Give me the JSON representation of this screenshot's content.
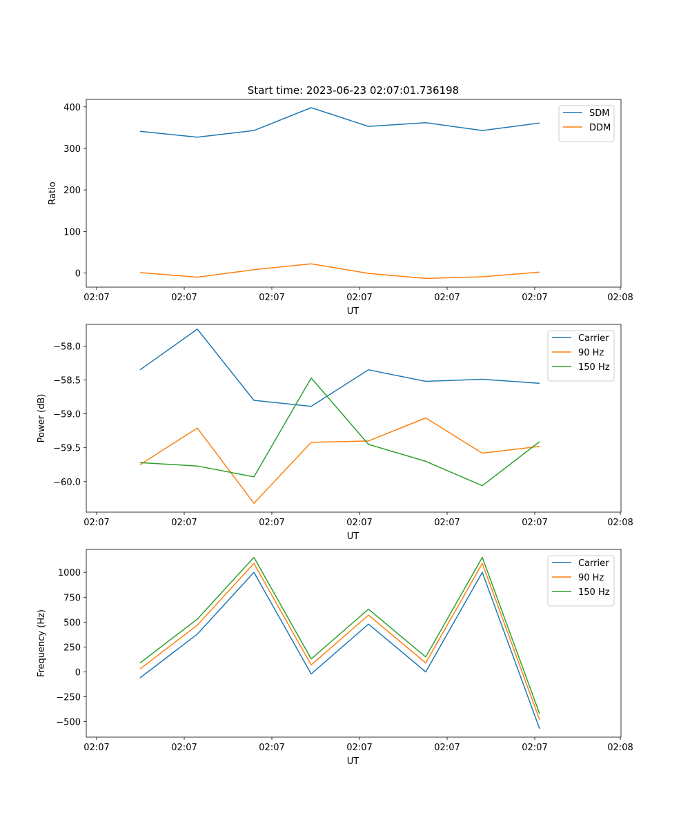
{
  "figure": {
    "title": "Start time: 2023-06-23 02:07:01.736198"
  },
  "chart_data": [
    {
      "type": "line",
      "title": "Start time: 2023-06-23 02:07:01.736198",
      "xlabel": "UT",
      "ylabel": "Ratio",
      "x_tick_labels": [
        "02:07",
        "02:07",
        "02:07",
        "02:07",
        "02:07",
        "02:07",
        "02:08"
      ],
      "y_ticks": [
        0,
        100,
        200,
        300,
        400
      ],
      "y_tick_labels": [
        "0",
        "100",
        "200",
        "300",
        "400"
      ],
      "ylim": [
        -34,
        418
      ],
      "legend_position": "top-right",
      "grid": false,
      "series": [
        {
          "name": "SDM",
          "color": "#1f77b4",
          "values": [
            341,
            327,
            343,
            398,
            353,
            362,
            343,
            361
          ]
        },
        {
          "name": "DDM",
          "color": "#ff7f0e",
          "values": [
            1,
            -10,
            8,
            22,
            -1,
            -13,
            -9,
            2
          ]
        }
      ]
    },
    {
      "type": "line",
      "xlabel": "UT",
      "ylabel": "Power (dB)",
      "x_tick_labels": [
        "02:07",
        "02:07",
        "02:07",
        "02:07",
        "02:07",
        "02:07",
        "02:08"
      ],
      "y_ticks": [
        -60.0,
        -59.5,
        -59.0,
        -58.5,
        -58.0
      ],
      "y_tick_labels": [
        "−60.0",
        "−59.5",
        "−59.0",
        "−58.5",
        "−58.0"
      ],
      "ylim": [
        -60.45,
        -57.68
      ],
      "legend_position": "top-right",
      "grid": false,
      "series": [
        {
          "name": "Carrier",
          "color": "#1f77b4",
          "values": [
            -58.35,
            -57.75,
            -58.8,
            -58.89,
            -58.35,
            -58.52,
            -58.49,
            -58.55
          ]
        },
        {
          "name": "90 Hz",
          "color": "#ff7f0e",
          "values": [
            -59.75,
            -59.21,
            -60.32,
            -59.42,
            -59.4,
            -59.06,
            -59.58,
            -59.48
          ]
        },
        {
          "name": "150 Hz",
          "color": "#2ca02c",
          "values": [
            -59.72,
            -59.77,
            -59.93,
            -58.47,
            -59.45,
            -59.7,
            -60.06,
            -59.41
          ]
        }
      ]
    },
    {
      "type": "line",
      "xlabel": "UT",
      "ylabel": "Frequency (Hz)",
      "x_tick_labels": [
        "02:07",
        "02:07",
        "02:07",
        "02:07",
        "02:07",
        "02:07",
        "02:08"
      ],
      "y_ticks": [
        -500,
        -250,
        0,
        250,
        500,
        750,
        1000
      ],
      "y_tick_labels": [
        "−500",
        "−250",
        "0",
        "250",
        "500",
        "750",
        "1000"
      ],
      "ylim": [
        -655,
        1230
      ],
      "legend_position": "top-right",
      "grid": false,
      "series": [
        {
          "name": "Carrier",
          "color": "#1f77b4",
          "values": [
            -60,
            380,
            1000,
            -20,
            480,
            0,
            1000,
            -570
          ]
        },
        {
          "name": "90 Hz",
          "color": "#ff7f0e",
          "values": [
            30,
            470,
            1090,
            70,
            570,
            90,
            1090,
            -480
          ]
        },
        {
          "name": "150 Hz",
          "color": "#2ca02c",
          "values": [
            90,
            530,
            1150,
            130,
            630,
            150,
            1150,
            -420
          ]
        }
      ]
    }
  ]
}
